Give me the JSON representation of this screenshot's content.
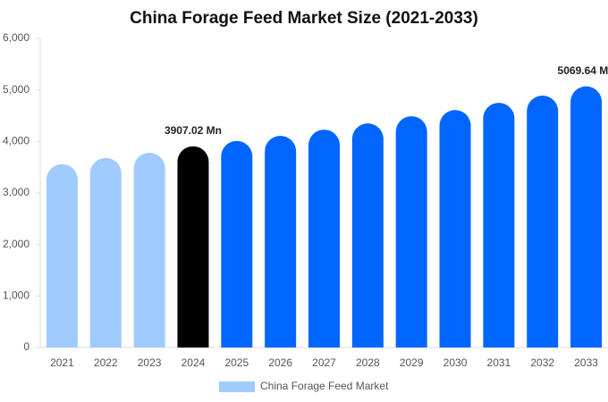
{
  "chart_data": {
    "type": "bar",
    "title": "China Forage Feed Market Size (2021-2033)",
    "categories": [
      "2021",
      "2022",
      "2023",
      "2024",
      "2025",
      "2026",
      "2027",
      "2028",
      "2029",
      "2030",
      "2031",
      "2032",
      "2033"
    ],
    "series": [
      {
        "name": "China Forage Feed Market",
        "color": "#a0cbff",
        "values": [
          3560,
          3680,
          3780,
          3907.02,
          4010,
          4110,
          4230,
          4350,
          4490,
          4610,
          4750,
          4890,
          5069.64
        ],
        "value_labels": [
          null,
          null,
          null,
          "3907.02 Mn",
          null,
          null,
          null,
          null,
          null,
          null,
          null,
          null,
          "5069.64 Mn"
        ],
        "colors": [
          "#a0cbff",
          "#a0cbff",
          "#a0cbff",
          "#000000",
          "#0066ff",
          "#0066ff",
          "#0066ff",
          "#0066ff",
          "#0066ff",
          "#0066ff",
          "#0066ff",
          "#0066ff",
          "#0066ff"
        ]
      }
    ],
    "ylim": [
      0,
      6000
    ],
    "yticks": [
      0,
      {
        "value": 1000,
        "label": "1,000"
      },
      {
        "value": 2000,
        "label": "2,000"
      },
      {
        "value": 3000,
        "label": "3,000"
      },
      {
        "value": 4000,
        "label": "4,000"
      },
      {
        "value": 5000,
        "label": "5,000"
      },
      {
        "value": 6000,
        "label": "6,000"
      }
    ],
    "grid": false,
    "legend": "bottom"
  }
}
